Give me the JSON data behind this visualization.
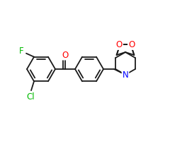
{
  "bg_color": "#ffffff",
  "bond_color": "#1a1a1a",
  "atom_colors": {
    "O": "#ff0000",
    "N": "#0000ff",
    "F": "#00bb00",
    "Cl": "#00bb00"
  },
  "line_width": 1.3,
  "font_size": 8.5,
  "ring_r": 20,
  "pip_r": 16,
  "dox_r": 13
}
